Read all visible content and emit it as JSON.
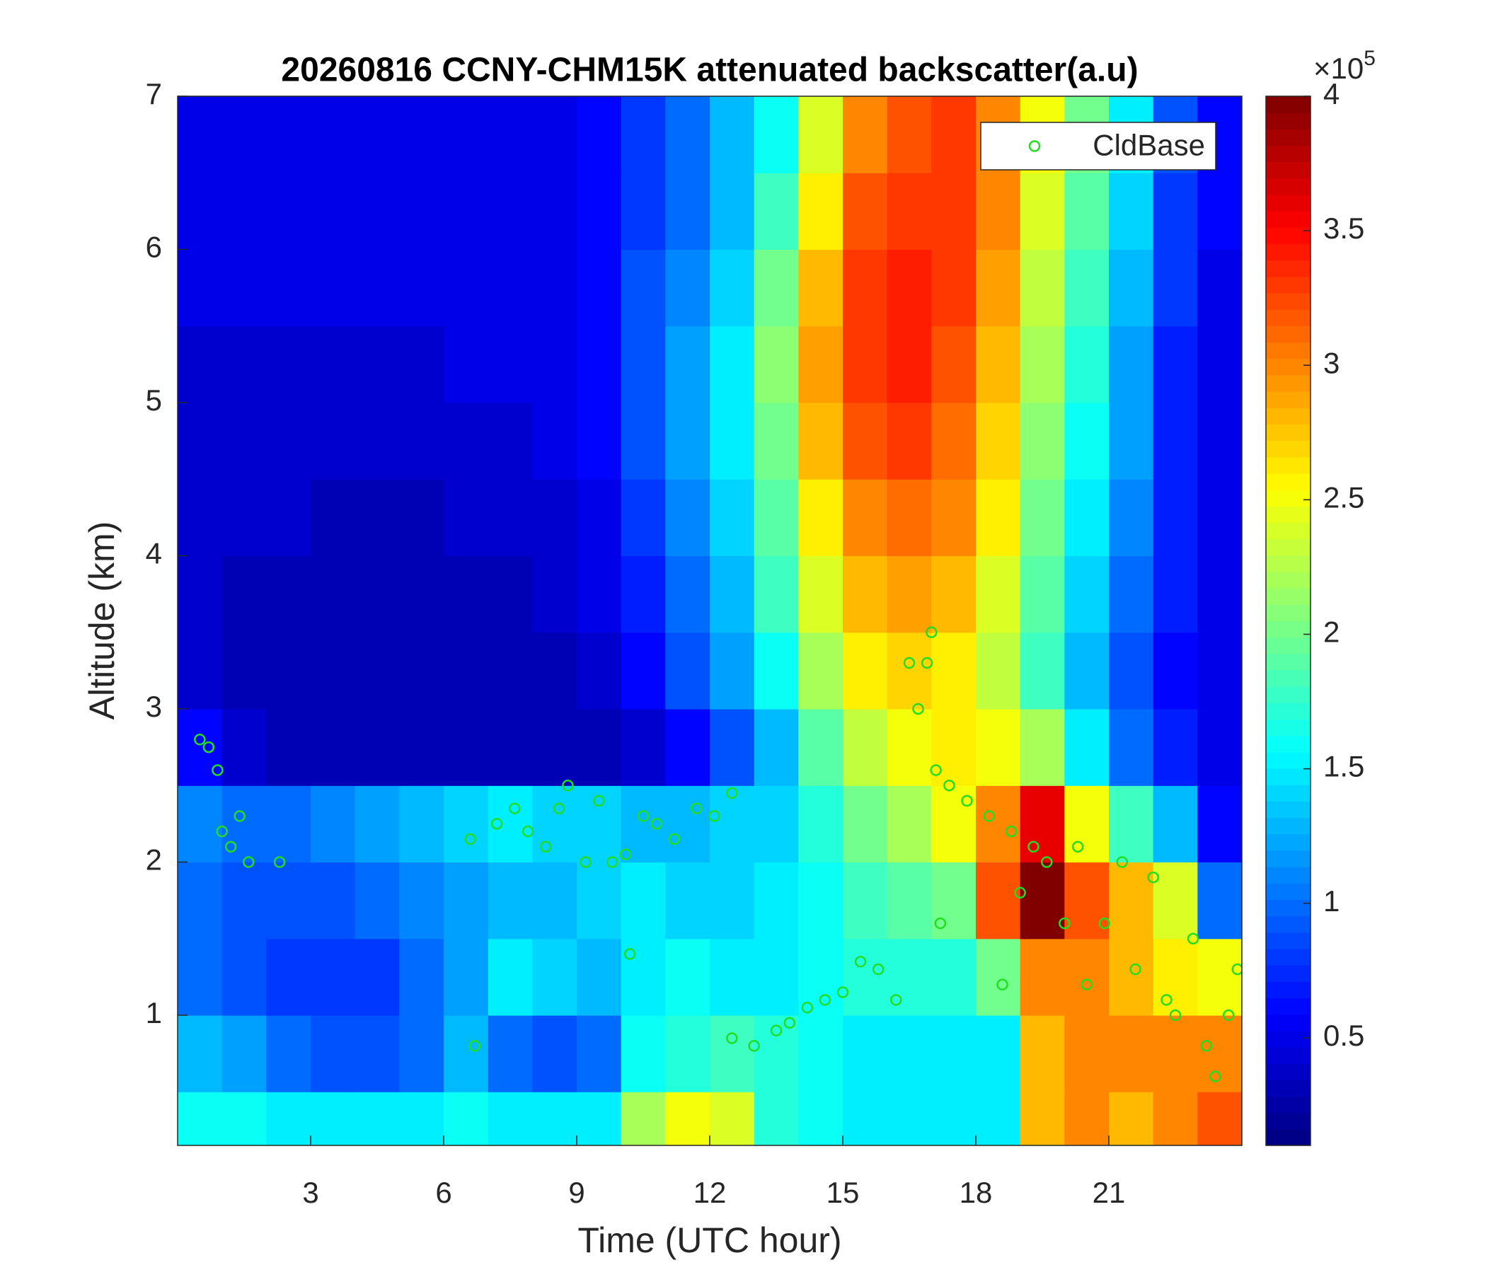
{
  "chart_data": {
    "type": "heatmap",
    "title": "20260816 CCNY-CHM15K attenuated backscatter(a.u)",
    "xlabel": "Time (UTC hour)",
    "ylabel": "Altitude (km)",
    "x": [
      0.5,
      1.5,
      2.5,
      3.5,
      4.5,
      5.5,
      6.5,
      7.5,
      8.5,
      9.5,
      10.5,
      11.5,
      12.5,
      13.5,
      14.5,
      15.5,
      16.5,
      17.5,
      18.5,
      19.5,
      20.5,
      21.5,
      22.5,
      23.5
    ],
    "y": [
      0.25,
      0.75,
      1.25,
      1.75,
      2.25,
      2.75,
      3.25,
      3.75,
      4.25,
      4.75,
      5.25,
      5.75,
      6.25,
      6.75
    ],
    "z": [
      [
        1.6,
        1.6,
        1.5,
        1.5,
        1.5,
        1.5,
        1.6,
        1.5,
        1.5,
        1.5,
        2.2,
        2.5,
        2.4,
        1.7,
        1.6,
        1.5,
        1.5,
        1.5,
        1.5,
        2.8,
        3.0,
        2.8,
        3.0,
        3.2
      ],
      [
        1.3,
        1.2,
        1.0,
        0.9,
        0.9,
        1.0,
        1.3,
        1.0,
        0.9,
        1.0,
        1.6,
        1.7,
        1.8,
        1.7,
        1.6,
        1.5,
        1.5,
        1.5,
        1.5,
        2.8,
        3.0,
        3.0,
        3.0,
        3.0
      ],
      [
        1.0,
        0.9,
        0.8,
        0.8,
        0.8,
        1.0,
        1.2,
        1.5,
        1.4,
        1.3,
        1.5,
        1.6,
        1.5,
        1.5,
        1.6,
        1.7,
        1.7,
        1.7,
        2.0,
        3.0,
        3.0,
        2.8,
        2.6,
        2.5
      ],
      [
        1.0,
        0.9,
        0.9,
        0.9,
        1.0,
        1.1,
        1.2,
        1.3,
        1.3,
        1.4,
        1.5,
        1.4,
        1.4,
        1.5,
        1.6,
        1.8,
        1.9,
        2.0,
        3.2,
        4.0,
        3.2,
        2.8,
        2.4,
        1.0
      ],
      [
        1.1,
        1.0,
        1.0,
        1.1,
        1.2,
        1.3,
        1.4,
        1.5,
        1.4,
        1.4,
        1.3,
        1.3,
        1.4,
        1.4,
        1.7,
        2.0,
        2.2,
        2.5,
        3.0,
        3.6,
        2.5,
        1.8,
        1.3,
        0.6
      ],
      [
        0.6,
        0.4,
        0.3,
        0.3,
        0.3,
        0.3,
        0.3,
        0.3,
        0.3,
        0.3,
        0.4,
        0.6,
        0.9,
        1.3,
        1.9,
        2.3,
        2.5,
        2.6,
        2.5,
        2.2,
        1.5,
        1.0,
        0.7,
        0.5
      ],
      [
        0.4,
        0.3,
        0.3,
        0.3,
        0.3,
        0.3,
        0.3,
        0.3,
        0.3,
        0.4,
        0.6,
        0.9,
        1.2,
        1.6,
        2.2,
        2.6,
        2.7,
        2.6,
        2.3,
        1.8,
        1.3,
        0.9,
        0.6,
        0.5
      ],
      [
        0.4,
        0.3,
        0.3,
        0.3,
        0.3,
        0.3,
        0.3,
        0.3,
        0.4,
        0.5,
        0.7,
        1.0,
        1.3,
        1.8,
        2.4,
        2.8,
        2.9,
        2.8,
        2.4,
        1.9,
        1.4,
        1.0,
        0.7,
        0.5
      ],
      [
        0.4,
        0.4,
        0.4,
        0.3,
        0.3,
        0.3,
        0.4,
        0.4,
        0.4,
        0.5,
        0.8,
        1.1,
        1.4,
        1.9,
        2.6,
        3.0,
        3.1,
        3.0,
        2.6,
        2.0,
        1.5,
        1.1,
        0.7,
        0.5
      ],
      [
        0.4,
        0.4,
        0.4,
        0.4,
        0.4,
        0.4,
        0.4,
        0.4,
        0.5,
        0.6,
        0.9,
        1.2,
        1.5,
        2.0,
        2.8,
        3.2,
        3.3,
        3.1,
        2.7,
        2.1,
        1.6,
        1.2,
        0.7,
        0.5
      ],
      [
        0.4,
        0.4,
        0.4,
        0.4,
        0.4,
        0.4,
        0.5,
        0.5,
        0.5,
        0.6,
        0.9,
        1.2,
        1.5,
        2.1,
        2.9,
        3.3,
        3.4,
        3.2,
        2.8,
        2.2,
        1.7,
        1.2,
        0.7,
        0.5
      ],
      [
        0.5,
        0.5,
        0.5,
        0.5,
        0.5,
        0.5,
        0.5,
        0.5,
        0.5,
        0.6,
        0.9,
        1.1,
        1.4,
        2.0,
        2.8,
        3.3,
        3.4,
        3.3,
        2.9,
        2.3,
        1.8,
        1.3,
        0.8,
        0.5
      ],
      [
        0.5,
        0.5,
        0.5,
        0.5,
        0.5,
        0.5,
        0.5,
        0.5,
        0.5,
        0.6,
        0.8,
        1.0,
        1.3,
        1.8,
        2.6,
        3.2,
        3.3,
        3.3,
        3.0,
        2.4,
        1.9,
        1.4,
        0.8,
        0.6
      ],
      [
        0.5,
        0.5,
        0.5,
        0.5,
        0.5,
        0.5,
        0.5,
        0.5,
        0.5,
        0.6,
        0.8,
        1.0,
        1.3,
        1.6,
        2.4,
        3.0,
        3.2,
        3.3,
        3.0,
        2.5,
        2.0,
        1.5,
        0.9,
        0.6
      ]
    ],
    "xlim": [
      0,
      24
    ],
    "ylim": [
      0.15,
      7
    ],
    "xticks": [
      3,
      6,
      9,
      12,
      15,
      18,
      21
    ],
    "yticks": [
      1,
      2,
      3,
      4,
      5,
      6,
      7
    ],
    "colormap": "jet",
    "colorbar": {
      "clim": [
        0.1,
        4
      ],
      "ticks": [
        0.5,
        1,
        1.5,
        2,
        2.5,
        3,
        3.5,
        4
      ],
      "multiplier": "×10",
      "exponent": "5"
    },
    "overlay": {
      "type": "scatter",
      "name": "CldBase",
      "color": "#22dd22",
      "x": [
        0.5,
        0.7,
        0.9,
        1.0,
        1.2,
        1.4,
        1.6,
        2.3,
        6.7,
        6.6,
        7.2,
        7.6,
        7.9,
        8.3,
        8.6,
        8.8,
        9.2,
        9.5,
        9.8,
        10.1,
        10.2,
        10.5,
        10.8,
        11.2,
        11.7,
        12.1,
        12.5,
        12.5,
        13.0,
        13.5,
        13.8,
        14.2,
        14.6,
        15.0,
        15.4,
        15.8,
        16.2,
        16.5,
        16.7,
        16.9,
        17.0,
        17.1,
        17.4,
        17.2,
        17.8,
        18.3,
        18.6,
        18.8,
        19.0,
        19.3,
        19.6,
        20.0,
        20.3,
        20.5,
        20.9,
        21.3,
        21.6,
        22.0,
        22.3,
        22.5,
        22.9,
        23.2,
        23.4,
        23.7,
        23.9
      ],
      "y": [
        2.8,
        2.75,
        2.6,
        2.2,
        2.1,
        2.3,
        2.0,
        2.0,
        0.8,
        2.15,
        2.25,
        2.35,
        2.2,
        2.1,
        2.35,
        2.5,
        2.0,
        2.4,
        2.0,
        2.05,
        1.4,
        2.3,
        2.25,
        2.15,
        2.35,
        2.3,
        2.45,
        0.85,
        0.8,
        0.9,
        0.95,
        1.05,
        1.1,
        1.15,
        1.35,
        1.3,
        1.1,
        3.3,
        3.0,
        3.3,
        3.5,
        2.6,
        2.5,
        1.6,
        2.4,
        2.3,
        1.2,
        2.2,
        1.8,
        2.1,
        2.0,
        1.6,
        2.1,
        1.2,
        1.6,
        2.0,
        1.3,
        1.9,
        1.1,
        1.0,
        1.5,
        0.8,
        0.6,
        1.0,
        1.3
      ]
    },
    "legend": "northeast"
  }
}
